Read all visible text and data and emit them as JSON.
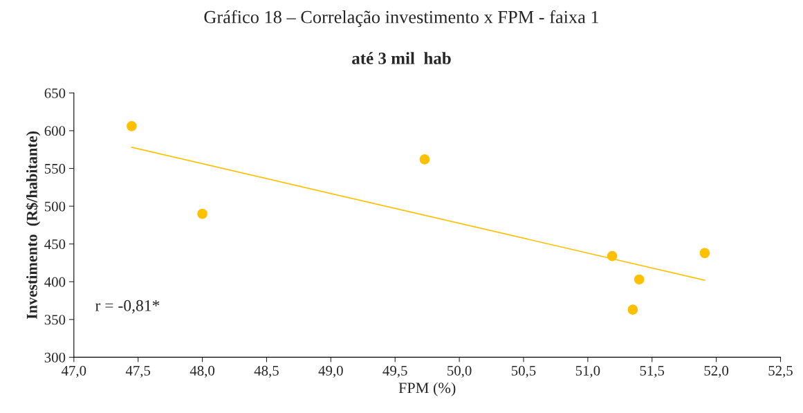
{
  "chart_data": {
    "type": "scatter",
    "title": "Gráfico 18 – Correlação investimento x FPM - faixa 1",
    "subtitle": "até 3 mil  hab",
    "xlabel": "FPM (%)",
    "ylabel": "Investimento  (R$/habitante)",
    "series": [
      {
        "type": "scatter",
        "color": "#ffc000",
        "marker": "circle",
        "x": [
          47.45,
          48.0,
          49.73,
          51.19,
          51.4,
          51.35,
          51.91
        ],
        "values": [
          606,
          490,
          562,
          434,
          403,
          363,
          438
        ]
      },
      {
        "type": "line",
        "color": "#ffc000",
        "marker": "none",
        "line_style": "solid",
        "x": [
          47.45,
          51.91
        ],
        "values": [
          578,
          402
        ]
      }
    ],
    "xlim": [
      47.0,
      52.5
    ],
    "xticks": [
      {
        "value": 47.0,
        "label": "47,0"
      },
      {
        "value": 47.5,
        "label": "47,5"
      },
      {
        "value": 48.0,
        "label": "48,0"
      },
      {
        "value": 48.5,
        "label": "48,5"
      },
      {
        "value": 49.0,
        "label": "49,0"
      },
      {
        "value": 49.5,
        "label": "49,5"
      },
      {
        "value": 50.0,
        "label": "50,0"
      },
      {
        "value": 50.5,
        "label": "50,5"
      },
      {
        "value": 51.0,
        "label": "51,0"
      },
      {
        "value": 51.5,
        "label": "51,5"
      },
      {
        "value": 52.0,
        "label": "52,0"
      },
      {
        "value": 52.5,
        "label": "52,5"
      }
    ],
    "ylim": [
      300,
      650
    ],
    "yticks": [
      300,
      350,
      400,
      450,
      500,
      550,
      600,
      650
    ],
    "annotations": [
      "r = -0,81*"
    ],
    "grid": false
  }
}
